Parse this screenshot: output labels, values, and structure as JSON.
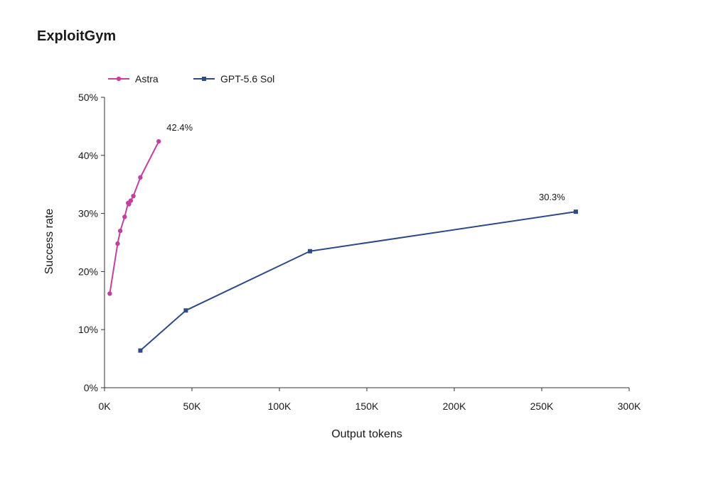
{
  "chart_data": {
    "type": "line",
    "title": "ExploitGym",
    "xlabel": "Output tokens",
    "ylabel": "Success rate",
    "xlim": [
      0,
      300000
    ],
    "ylim": [
      0,
      50
    ],
    "x_ticks": [
      0,
      50000,
      100000,
      150000,
      200000,
      250000,
      300000
    ],
    "x_tick_labels": [
      "0K",
      "50K",
      "100K",
      "150K",
      "200K",
      "250K",
      "300K"
    ],
    "y_ticks": [
      0,
      10,
      20,
      30,
      40,
      50
    ],
    "y_tick_labels": [
      "0%",
      "10%",
      "20%",
      "30%",
      "40%",
      "50%"
    ],
    "grid": false,
    "legend_position": "top-left",
    "series": [
      {
        "name": "Astra",
        "color": "#c2409e",
        "marker": "circle",
        "x": [
          3000,
          7500,
          9000,
          11500,
          13500,
          14000,
          15000,
          16500,
          20500,
          31000
        ],
        "y": [
          16.2,
          24.8,
          27.0,
          29.4,
          31.8,
          31.6,
          32.2,
          33.0,
          36.2,
          42.4
        ],
        "end_label": "42.4%"
      },
      {
        "name": "GPT-5.6 Sol",
        "color": "#2d4a86",
        "marker": "square",
        "x": [
          20500,
          46500,
          117500,
          269500
        ],
        "y": [
          6.4,
          13.3,
          23.5,
          30.3
        ],
        "end_label": "30.3%"
      }
    ]
  }
}
